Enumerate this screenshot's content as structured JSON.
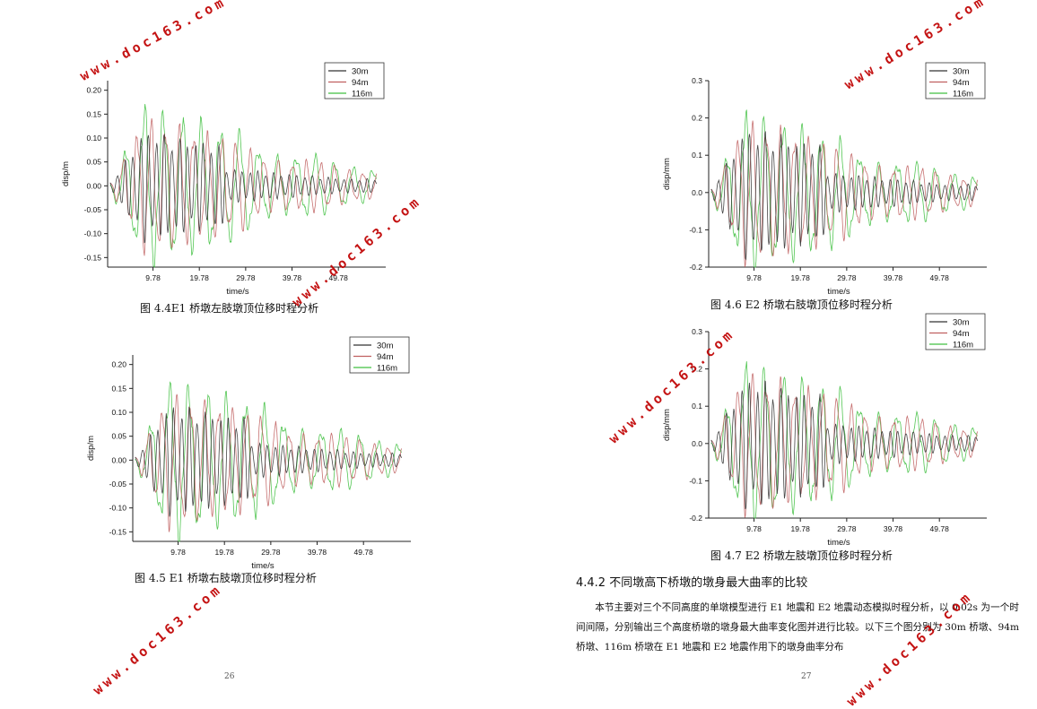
{
  "figures": [
    {
      "id": "fig44",
      "caption": "图 4.4E1 桥墩左肢墩顶位移时程分析",
      "ylabel": "disp/m",
      "xlabel": "time/s",
      "yticks": [
        "0.20",
        "0.15",
        "0.10",
        "0.05",
        "0.00",
        "-0.05",
        "-0.10",
        "-0.15"
      ],
      "xticks": [
        "9.78",
        "19.78",
        "29.78",
        "39.78",
        "49.78"
      ],
      "legend": [
        "30m",
        "94m",
        "116m"
      ]
    },
    {
      "id": "fig45",
      "caption": "图 4.5 E1 桥墩右肢墩顶位移时程分析",
      "ylabel": "disp/m",
      "xlabel": "time/s",
      "yticks": [
        "0.20",
        "0.15",
        "0.10",
        "0.05",
        "0.00",
        "-0.05",
        "-0.10",
        "-0.15"
      ],
      "xticks": [
        "9.78",
        "19.78",
        "29.78",
        "39.78",
        "49.78"
      ],
      "legend": [
        "30m",
        "94m",
        "116m"
      ]
    },
    {
      "id": "fig46",
      "caption": "图 4.6 E2 桥墩右肢墩顶位移时程分析",
      "ylabel": "disp/mm",
      "xlabel": "time/s",
      "yticks": [
        "0.3",
        "0.2",
        "0.1",
        "0.0",
        "-0.1",
        "-0.2"
      ],
      "xticks": [
        "9.78",
        "19.78",
        "29.78",
        "39.78",
        "49.78"
      ],
      "legend": [
        "30m",
        "94m",
        "116m"
      ]
    },
    {
      "id": "fig47",
      "caption": "图 4.7 E2 桥墩左肢墩顶位移时程分析",
      "ylabel": "disp/mm",
      "xlabel": "time/s",
      "yticks": [
        "0.3",
        "0.2",
        "0.1",
        "0.0",
        "-0.1",
        "-0.2"
      ],
      "xticks": [
        "9.78",
        "19.78",
        "29.78",
        "39.78",
        "49.78"
      ],
      "legend": [
        "30m",
        "94m",
        "116m"
      ]
    }
  ],
  "chart_data": [
    {
      "type": "line",
      "xlabel": "time/s",
      "ylabel": "disp/m",
      "ylim": [
        -0.17,
        0.22
      ],
      "xlim": [
        0,
        60
      ],
      "x_ticks": [
        9.78,
        19.78,
        29.78,
        39.78,
        49.78
      ],
      "series": [
        {
          "name": "30m",
          "color": "#333333",
          "peak": 0.12
        },
        {
          "name": "94m",
          "color": "#c06060",
          "peak": 0.15
        },
        {
          "name": "116m",
          "color": "#40c040",
          "peak": 0.18
        }
      ]
    },
    {
      "type": "line",
      "xlabel": "time/s",
      "ylabel": "disp/m",
      "ylim": [
        -0.17,
        0.22
      ],
      "xlim": [
        0,
        60
      ],
      "x_ticks": [
        9.78,
        19.78,
        29.78,
        39.78,
        49.78
      ],
      "series": [
        {
          "name": "30m",
          "color": "#333333",
          "peak": 0.12
        },
        {
          "name": "94m",
          "color": "#c06060",
          "peak": 0.15
        },
        {
          "name": "116m",
          "color": "#40c040",
          "peak": 0.18
        }
      ]
    },
    {
      "type": "line",
      "xlabel": "time/s",
      "ylabel": "disp/mm",
      "ylim": [
        -0.2,
        0.3
      ],
      "xlim": [
        0,
        60
      ],
      "x_ticks": [
        9.78,
        19.78,
        29.78,
        39.78,
        49.78
      ],
      "series": [
        {
          "name": "30m",
          "color": "#333333",
          "peak": 0.18
        },
        {
          "name": "94m",
          "color": "#c06060",
          "peak": 0.2
        },
        {
          "name": "116m",
          "color": "#40c040",
          "peak": 0.23
        }
      ]
    },
    {
      "type": "line",
      "xlabel": "time/s",
      "ylabel": "disp/mm",
      "ylim": [
        -0.2,
        0.3
      ],
      "xlim": [
        0,
        60
      ],
      "x_ticks": [
        9.78,
        19.78,
        29.78,
        39.78,
        49.78
      ],
      "series": [
        {
          "name": "30m",
          "color": "#333333",
          "peak": 0.18
        },
        {
          "name": "94m",
          "color": "#c06060",
          "peak": 0.2
        },
        {
          "name": "116m",
          "color": "#40c040",
          "peak": 0.23
        }
      ]
    }
  ],
  "section": {
    "heading": "4.4.2 不同墩高下桥墩的墩身最大曲率的比较",
    "paragraph": "本节主要对三个不同高度的单墩模型进行 E1 地震和 E2 地震动态模拟时程分析，以 0.02s 为一个时间间隔，分别输出三个高度桥墩的墩身最大曲率变化图并进行比较。以下三个图分别为 30m 桥墩、94m 桥墩、116m 桥墩在 E1 地震和 E2 地震作用下的墩身曲率分布"
  },
  "page_numbers": {
    "left": "26",
    "right": "27"
  },
  "watermark": "www.doc163.com"
}
